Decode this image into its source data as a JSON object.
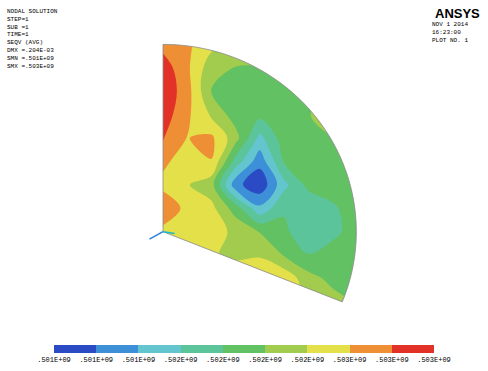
{
  "chart_data": {
    "type": "contour",
    "tick_labels": false,
    "annotations": {
      "left": [
        "NODAL SOLUTION",
        "STEP=1",
        "SUB =1",
        "TIME=1",
        "SEQV (AVG)",
        "DMX =.204E-03",
        "SMN =.501E+09",
        "SMX =.503E+09"
      ],
      "logo": "ANSYS",
      "right": [
        "NOV 1 2014",
        "16:23:00",
        "PLOT NO. 1"
      ]
    },
    "cells": [
      [
        502700000,
        502600000,
        502400000,
        502300000,
        502200000,
        null,
        null,
        null,
        null
      ],
      [
        502900000,
        502600000,
        502200000,
        502100000,
        502100000,
        502100000,
        502100000,
        null,
        null
      ],
      [
        502950000,
        502650000,
        502100000,
        501950000,
        502000000,
        502050000,
        502100000,
        502100000,
        null
      ],
      [
        502900000,
        502600000,
        502300000,
        502000000,
        501950000,
        502000000,
        502100000,
        502200000,
        502200000
      ],
      [
        502800000,
        502550000,
        502600000,
        502200000,
        501600000,
        502000000,
        502050000,
        502100000,
        502100000
      ],
      [
        502600000,
        502450000,
        502550000,
        501800000,
        501300000,
        501900000,
        502000000,
        502050000,
        502100000
      ],
      [
        502500000,
        502350000,
        502200000,
        501300000,
        501050000,
        501600000,
        501950000,
        502000000,
        502050000
      ],
      [
        502700000,
        502500000,
        502400000,
        502000000,
        501500000,
        501850000,
        501700000,
        501850000,
        502000000
      ],
      [
        502500000,
        502450000,
        502400000,
        502300000,
        502100000,
        501950000,
        501700000,
        501850000,
        501950000
      ],
      [
        502450000,
        502400000,
        502350000,
        502300000,
        502300000,
        502100000,
        501900000,
        501950000,
        502000000
      ],
      [
        null,
        null,
        502400000,
        502450000,
        502600000,
        502500000,
        502200000,
        502050000,
        502000000
      ],
      [
        null,
        null,
        null,
        null,
        null,
        502450000,
        502300000,
        502200000,
        502100000
      ]
    ],
    "colorbar": {
      "range": [
        501000000,
        503000000
      ],
      "ticks": [
        {
          "value": 501000000,
          "label": ".501E+09"
        },
        {
          "value": 501222222,
          "label": ".501E+09"
        },
        {
          "value": 501444444,
          "label": ".501E+09"
        },
        {
          "value": 501666667,
          "label": ".502E+09"
        },
        {
          "value": 501888889,
          "label": ".502E+09"
        },
        {
          "value": 502111111,
          "label": ".502E+09"
        },
        {
          "value": 502333333,
          "label": ".502E+09"
        },
        {
          "value": 502555556,
          "label": ".503E+09"
        },
        {
          "value": 502777778,
          "label": ".503E+09"
        },
        {
          "value": 503000000,
          "label": ".503E+09"
        }
      ],
      "colors": [
        "#2a4bc4",
        "#3d8fd8",
        "#63c6cf",
        "#5cc49a",
        "#62c162",
        "#a2cc4e",
        "#e4e04a",
        "#ee8f36",
        "#e23126"
      ]
    }
  }
}
